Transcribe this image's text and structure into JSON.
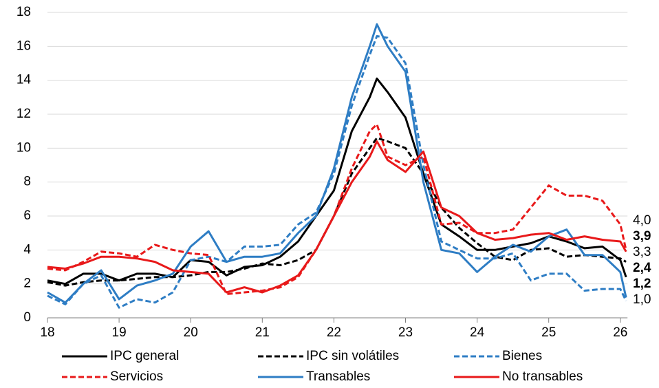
{
  "chart_data": {
    "type": "line",
    "x": [
      18,
      18.25,
      18.5,
      18.75,
      19,
      19.25,
      19.5,
      19.75,
      20,
      20.25,
      20.5,
      20.75,
      21,
      21.25,
      21.5,
      21.75,
      22,
      22.25,
      22.5,
      22.6,
      22.75,
      23,
      23.25,
      23.5,
      23.75,
      24,
      24.25,
      24.5,
      24.75,
      25,
      25.25,
      25.5,
      25.75,
      26,
      26.08
    ],
    "xlim": [
      18,
      26.1
    ],
    "xticks": [
      18,
      19,
      20,
      21,
      22,
      23,
      24,
      25,
      26
    ],
    "ylim": [
      0,
      18
    ],
    "yticks": [
      0,
      2,
      4,
      6,
      8,
      10,
      12,
      14,
      16,
      18
    ],
    "grid": true,
    "series": [
      {
        "name": "IPC general",
        "color": "#000000",
        "dashed": false,
        "values": [
          2.2,
          2.0,
          2.6,
          2.6,
          2.2,
          2.6,
          2.6,
          2.4,
          3.4,
          3.3,
          2.5,
          3.0,
          3.1,
          3.6,
          4.5,
          6.0,
          7.5,
          11.0,
          13.0,
          14.1,
          13.3,
          11.8,
          8.5,
          5.5,
          4.8,
          4.0,
          4.0,
          4.2,
          4.4,
          4.8,
          4.5,
          4.1,
          4.2,
          3.4,
          2.4
        ],
        "value_labels": [
          null,
          null,
          null,
          null,
          null,
          null,
          null,
          null,
          null,
          null,
          null,
          null,
          null,
          null,
          null,
          null,
          null,
          null,
          null,
          null,
          null,
          null,
          null,
          null,
          null,
          null,
          null,
          null,
          null,
          null,
          null,
          null,
          null,
          null,
          "2,4"
        ]
      },
      {
        "name": "IPC sin volátiles",
        "color": "#000000",
        "dashed": true,
        "values": [
          2.1,
          1.9,
          2.1,
          2.2,
          2.2,
          2.3,
          2.4,
          2.4,
          2.5,
          2.7,
          2.7,
          2.9,
          3.2,
          3.1,
          3.4,
          4.0,
          6.0,
          8.5,
          10.0,
          10.6,
          10.4,
          10.0,
          8.5,
          6.5,
          5.3,
          4.4,
          3.6,
          3.4,
          4.0,
          4.1,
          3.6,
          3.7,
          3.6,
          3.5,
          3.3
        ],
        "value_labels": [
          null,
          null,
          null,
          null,
          null,
          null,
          null,
          null,
          null,
          null,
          null,
          null,
          null,
          null,
          null,
          null,
          null,
          null,
          null,
          null,
          null,
          null,
          null,
          null,
          null,
          null,
          null,
          null,
          null,
          null,
          null,
          null,
          null,
          null,
          "3,3"
        ]
      },
      {
        "name": "Bienes",
        "color": "#2e7dc4",
        "dashed": true,
        "values": [
          1.3,
          0.8,
          2.0,
          2.5,
          0.6,
          1.1,
          0.9,
          1.5,
          3.4,
          3.6,
          3.3,
          4.2,
          4.2,
          4.3,
          5.5,
          6.2,
          8.5,
          12.5,
          15.5,
          16.6,
          16.5,
          15.0,
          9.0,
          4.5,
          4.0,
          3.5,
          3.5,
          3.8,
          2.2,
          2.6,
          2.6,
          1.6,
          1.7,
          1.7,
          1.0
        ],
        "value_labels": [
          null,
          null,
          null,
          null,
          null,
          null,
          null,
          null,
          null,
          null,
          null,
          null,
          null,
          null,
          null,
          null,
          null,
          null,
          null,
          null,
          null,
          null,
          null,
          null,
          null,
          null,
          null,
          null,
          null,
          null,
          null,
          null,
          null,
          null,
          "1,0"
        ]
      },
      {
        "name": "Servicios",
        "color": "#e8191a",
        "dashed": true,
        "values": [
          2.9,
          2.8,
          3.3,
          3.9,
          3.8,
          3.6,
          4.3,
          4.0,
          3.8,
          3.7,
          1.4,
          1.5,
          1.6,
          1.8,
          2.4,
          4.0,
          6.0,
          8.8,
          11.0,
          11.4,
          9.5,
          9.0,
          9.5,
          5.5,
          5.6,
          5.0,
          5.0,
          5.2,
          6.5,
          7.8,
          7.2,
          7.2,
          6.9,
          5.5,
          4.0
        ],
        "value_labels": [
          null,
          null,
          null,
          null,
          null,
          null,
          null,
          null,
          null,
          null,
          null,
          null,
          null,
          null,
          null,
          null,
          null,
          null,
          null,
          null,
          null,
          null,
          null,
          null,
          null,
          null,
          null,
          null,
          null,
          null,
          null,
          null,
          null,
          null,
          "4,0"
        ]
      },
      {
        "name": "Transables",
        "color": "#2e7dc4",
        "dashed": false,
        "values": [
          1.5,
          0.9,
          2.0,
          2.8,
          1.1,
          1.9,
          2.2,
          2.6,
          4.2,
          5.1,
          3.3,
          3.6,
          3.6,
          3.8,
          5.0,
          6.0,
          8.8,
          13.0,
          16.0,
          17.3,
          16.0,
          14.5,
          8.0,
          4.0,
          3.8,
          2.7,
          3.6,
          4.3,
          3.9,
          4.8,
          5.2,
          3.7,
          3.7,
          2.7,
          1.2
        ],
        "value_labels": [
          null,
          null,
          null,
          null,
          null,
          null,
          null,
          null,
          null,
          null,
          null,
          null,
          null,
          null,
          null,
          null,
          null,
          null,
          null,
          null,
          null,
          null,
          null,
          null,
          null,
          null,
          null,
          null,
          null,
          null,
          null,
          null,
          null,
          null,
          "1,2"
        ]
      },
      {
        "name": "No transables",
        "color": "#e8191a",
        "dashed": false,
        "values": [
          3.0,
          2.9,
          3.2,
          3.6,
          3.6,
          3.5,
          3.3,
          2.8,
          2.7,
          2.6,
          1.5,
          1.8,
          1.5,
          1.9,
          2.5,
          4.0,
          6.0,
          8.0,
          9.5,
          10.4,
          9.3,
          8.6,
          9.8,
          6.5,
          6.0,
          5.0,
          4.6,
          4.7,
          4.9,
          5.0,
          4.6,
          4.8,
          4.6,
          4.5,
          3.9
        ],
        "value_labels": [
          null,
          null,
          null,
          null,
          null,
          null,
          null,
          null,
          null,
          null,
          null,
          null,
          null,
          null,
          null,
          null,
          null,
          null,
          null,
          null,
          null,
          null,
          null,
          null,
          null,
          null,
          null,
          null,
          null,
          null,
          null,
          null,
          null,
          null,
          "3,9"
        ]
      }
    ]
  }
}
